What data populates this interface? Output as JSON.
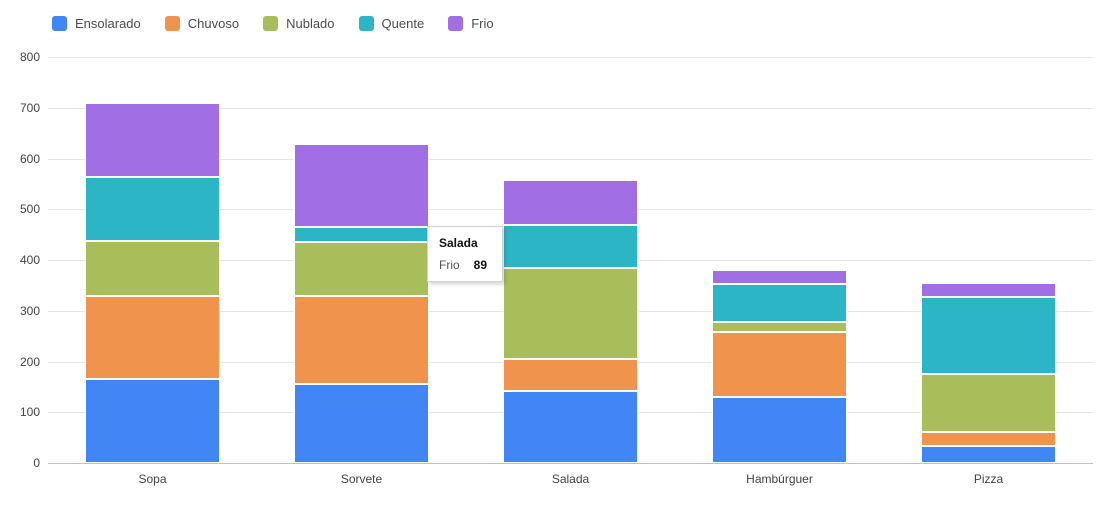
{
  "chart_data": {
    "type": "bar",
    "stacked": true,
    "title": "",
    "xlabel": "",
    "ylabel": "",
    "categories": [
      "Sopa",
      "Sorvete",
      "Salada",
      "Hambúrguer",
      "Pizza"
    ],
    "series": [
      {
        "name": "Ensolarado",
        "color": "#4285f4",
        "values": [
          165,
          155,
          142,
          130,
          33
        ]
      },
      {
        "name": "Chuvoso",
        "color": "#f0944d",
        "values": [
          165,
          175,
          62,
          129,
          28
        ]
      },
      {
        "name": "Nublado",
        "color": "#a9bd5a",
        "values": [
          108,
          105,
          181,
          19,
          115
        ]
      },
      {
        "name": "Quente",
        "color": "#2cb5c4",
        "values": [
          126,
          30,
          84,
          74,
          152
        ]
      },
      {
        "name": "Frio",
        "color": "#a26ee3",
        "values": [
          146,
          163,
          89,
          29,
          27
        ]
      }
    ],
    "ylim": [
      0,
      800
    ],
    "ytick_step": 100,
    "yticks": [
      "0",
      "100",
      "200",
      "300",
      "400",
      "500",
      "600",
      "700",
      "800"
    ],
    "grid": true,
    "legend_position": "top"
  },
  "tooltip": {
    "title": "Salada",
    "series": "Frio",
    "value": "89"
  }
}
